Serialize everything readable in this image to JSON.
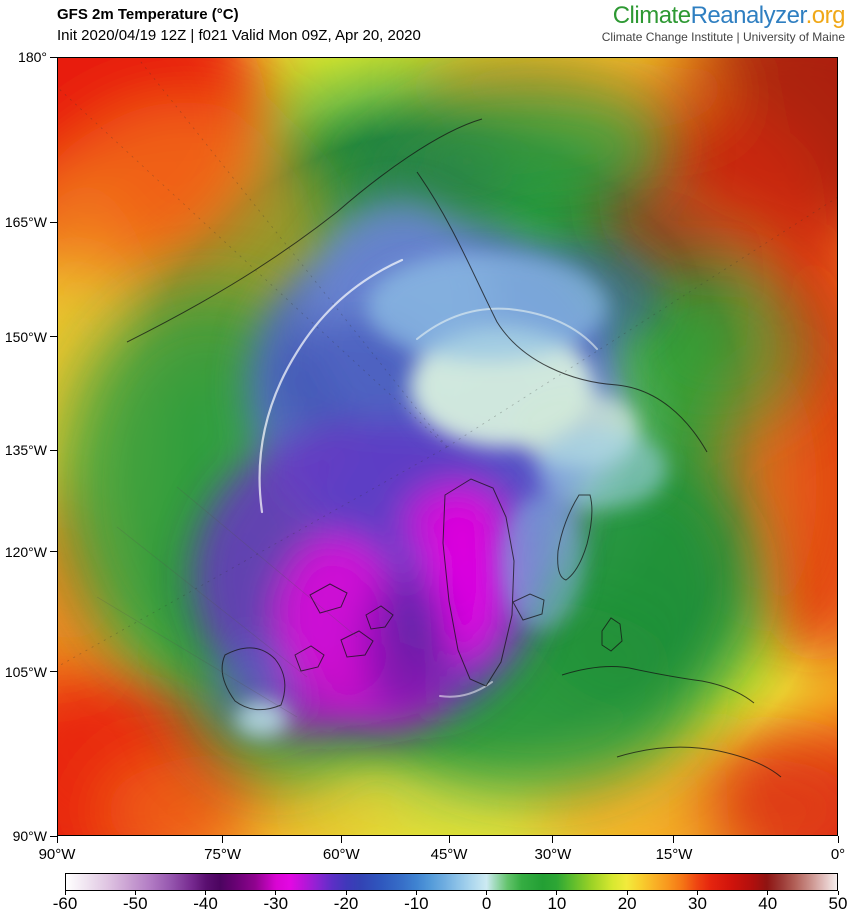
{
  "header": {
    "title": "GFS 2m Temperature (°C)",
    "subtitle": "Init 2020/04/19 12Z | f021 Valid Mon 09Z, Apr 20, 2020",
    "logo": {
      "part1": "Climate",
      "part2": "Reanalyzer",
      "part3": ".org",
      "tagline": "Climate Change Institute | University of Maine",
      "colors": {
        "part1": "#2e9933",
        "part2": "#2f7fc1",
        "part3": "#f0a818",
        "tagline": "#444444"
      }
    }
  },
  "map": {
    "projection_note": "North polar view, GFS 2m temperature field",
    "y_axis_ticks": [
      {
        "label": "180°",
        "pos": 0.0
      },
      {
        "label": "165°W",
        "pos": 0.212
      },
      {
        "label": "150°W",
        "pos": 0.359
      },
      {
        "label": "135°W",
        "pos": 0.505
      },
      {
        "label": "120°W",
        "pos": 0.635
      },
      {
        "label": "105°W",
        "pos": 0.789
      },
      {
        "label": "90°W",
        "pos": 1.0
      }
    ],
    "x_axis_ticks": [
      {
        "label": "90°W",
        "pos": 0.0
      },
      {
        "label": "75°W",
        "pos": 0.212
      },
      {
        "label": "60°W",
        "pos": 0.364
      },
      {
        "label": "45°W",
        "pos": 0.502
      },
      {
        "label": "30°W",
        "pos": 0.635
      },
      {
        "label": "15°W",
        "pos": 0.79
      },
      {
        "label": "0°",
        "pos": 1.0
      }
    ]
  },
  "colorbar": {
    "unit": "°C",
    "min": -60,
    "max": 50,
    "labels": [
      "-60",
      "-50",
      "-40",
      "-30",
      "-20",
      "-10",
      "0",
      "10",
      "20",
      "30",
      "40",
      "50"
    ],
    "stops": [
      {
        "v": -60,
        "c": "#ffffff"
      },
      {
        "v": -57,
        "c": "#efe3f0"
      },
      {
        "v": -54,
        "c": "#dfc4e2"
      },
      {
        "v": -51,
        "c": "#c9a0d2"
      },
      {
        "v": -48,
        "c": "#b27cc4"
      },
      {
        "v": -45,
        "c": "#9556ae"
      },
      {
        "v": -42,
        "c": "#76298f"
      },
      {
        "v": -40,
        "c": "#5a0f70"
      },
      {
        "v": -38,
        "c": "#4c0460"
      },
      {
        "v": -36,
        "c": "#660272"
      },
      {
        "v": -33,
        "c": "#90038f"
      },
      {
        "v": -30,
        "c": "#d905d3"
      },
      {
        "v": -28,
        "c": "#e308e3"
      },
      {
        "v": -26,
        "c": "#b915d9"
      },
      {
        "v": -24,
        "c": "#8a24d2"
      },
      {
        "v": -22,
        "c": "#5c2fc6"
      },
      {
        "v": -20,
        "c": "#4038ba"
      },
      {
        "v": -18,
        "c": "#3343b4"
      },
      {
        "v": -15,
        "c": "#2f58be"
      },
      {
        "v": -12,
        "c": "#376fc8"
      },
      {
        "v": -10,
        "c": "#3f83d1"
      },
      {
        "v": -8,
        "c": "#539ad9"
      },
      {
        "v": -6,
        "c": "#6fade0"
      },
      {
        "v": -4,
        "c": "#8ec3e8"
      },
      {
        "v": -2,
        "c": "#aed8ee"
      },
      {
        "v": 0,
        "c": "#cdeaf2"
      },
      {
        "v": 1,
        "c": "#a8ddc4"
      },
      {
        "v": 3,
        "c": "#63c36c"
      },
      {
        "v": 5,
        "c": "#35ad42"
      },
      {
        "v": 8,
        "c": "#239f34"
      },
      {
        "v": 10,
        "c": "#2da635"
      },
      {
        "v": 12,
        "c": "#57ba2e"
      },
      {
        "v": 15,
        "c": "#9cd226"
      },
      {
        "v": 18,
        "c": "#d8e830"
      },
      {
        "v": 20,
        "c": "#f2ea3c"
      },
      {
        "v": 22,
        "c": "#f8cf2e"
      },
      {
        "v": 24,
        "c": "#f9b226"
      },
      {
        "v": 26,
        "c": "#f8951d"
      },
      {
        "v": 28,
        "c": "#f57415"
      },
      {
        "v": 30,
        "c": "#ef4511"
      },
      {
        "v": 32,
        "c": "#e5240e"
      },
      {
        "v": 35,
        "c": "#d0130c"
      },
      {
        "v": 38,
        "c": "#b00f0d"
      },
      {
        "v": 40,
        "c": "#8f1412"
      },
      {
        "v": 42,
        "c": "#9b3834"
      },
      {
        "v": 44,
        "c": "#b26058"
      },
      {
        "v": 46,
        "c": "#c88c86"
      },
      {
        "v": 48,
        "c": "#e0bcba"
      },
      {
        "v": 50,
        "c": "#f6eeed"
      }
    ]
  }
}
